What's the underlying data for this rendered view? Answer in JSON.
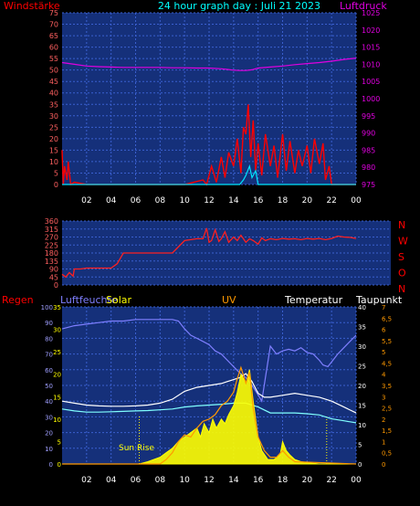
{
  "colors": {
    "bg": "#000000",
    "plot_bg": "#15307a",
    "grid": "#3a5fcf",
    "wind": "#ff0000",
    "gust": "#00e5ff",
    "pressure": "#e000e0",
    "winddir": "#ff2020",
    "humidity": "#7f7fff",
    "solar": "#ffff00",
    "uv": "#ff9900",
    "temp": "#ffffff",
    "dew": "#80ffff",
    "rain_label": "#ff0000",
    "title": "#00ffff"
  },
  "chart_data": [
    {
      "type": "line",
      "title": "24 hour graph day : Juli 21 2023",
      "ylabel_left": "Windstärke",
      "ylabel_right": "Luftdruck",
      "x_ticks": [
        "02",
        "04",
        "06",
        "08",
        "10",
        "12",
        "14",
        "16",
        "18",
        "20",
        "22",
        "00"
      ],
      "y_left_ticks": [
        "0",
        "5",
        "10",
        "15",
        "20",
        "25",
        "30",
        "35",
        "40",
        "45",
        "50",
        "55",
        "60",
        "65",
        "70",
        "75"
      ],
      "y_right_ticks": [
        "975",
        "980",
        "985",
        "990",
        "995",
        "1000",
        "1005",
        "1010",
        "1015",
        "1020",
        "1025"
      ],
      "ylim_left": [
        0,
        75
      ],
      "ylim_right": [
        975,
        1025
      ],
      "grid": true,
      "series": [
        {
          "name": "Luftdruck",
          "axis": "right",
          "x": [
            0,
            1,
            2,
            3,
            4,
            5,
            6,
            7,
            8,
            9,
            10,
            11,
            12,
            13,
            13.5,
            14,
            14.5,
            15,
            15.5,
            16,
            17,
            18,
            19,
            20,
            21,
            22,
            23,
            24
          ],
          "values": [
            1010.5,
            1010.0,
            1009.5,
            1009.3,
            1009.2,
            1009.1,
            1009.1,
            1009.1,
            1009.1,
            1009.0,
            1009.0,
            1008.9,
            1008.9,
            1008.7,
            1008.5,
            1008.3,
            1008.2,
            1008.2,
            1008.4,
            1008.9,
            1009.2,
            1009.5,
            1009.9,
            1010.2,
            1010.5,
            1010.9,
            1011.4,
            1011.8
          ]
        },
        {
          "name": "Windstärke",
          "axis": "left",
          "x": [
            0,
            0.1,
            0.2,
            0.4,
            0.5,
            0.7,
            1,
            2,
            4,
            6,
            8,
            10,
            11.5,
            11.8,
            12.2,
            12.6,
            13,
            13.3,
            13.6,
            14,
            14.3,
            14.6,
            14.8,
            15,
            15.2,
            15.4,
            15.6,
            15.8,
            16,
            16.3,
            16.6,
            17,
            17.3,
            17.6,
            18,
            18.3,
            18.6,
            19,
            19.3,
            19.6,
            20,
            20.3,
            20.6,
            21,
            21.3,
            21.5,
            21.8,
            22,
            24
          ],
          "values": [
            15,
            0,
            8,
            2,
            10,
            0,
            1,
            0,
            0,
            0,
            0,
            0,
            2,
            0,
            8,
            1,
            12,
            3,
            14,
            8,
            20,
            5,
            25,
            22,
            35,
            12,
            28,
            6,
            18,
            4,
            22,
            8,
            17,
            3,
            22,
            6,
            19,
            5,
            15,
            8,
            17,
            5,
            20,
            9,
            18,
            2,
            8,
            0,
            0
          ]
        },
        {
          "name": "Gust",
          "axis": "left",
          "x": [
            0,
            14.5,
            14.8,
            15,
            15.3,
            15.5,
            15.8,
            16,
            24
          ],
          "values": [
            0,
            0,
            2,
            4,
            8,
            3,
            6,
            0,
            0
          ]
        }
      ]
    },
    {
      "type": "line",
      "ylim": [
        0,
        360
      ],
      "y_ticks": [
        "0",
        "45",
        "90",
        "135",
        "180",
        "225",
        "270",
        "315",
        "360"
      ],
      "right_labels": [
        "N",
        "W",
        "S",
        "O",
        "N"
      ],
      "x_ticks": [
        "02",
        "04",
        "06",
        "08",
        "10",
        "12",
        "14",
        "16",
        "18",
        "20",
        "22",
        "00"
      ],
      "series": [
        {
          "name": "Windrichtung",
          "x": [
            0,
            0.3,
            0.6,
            0.9,
            1,
            1.5,
            2,
            3,
            4,
            4.5,
            5,
            6,
            7,
            8,
            9,
            10,
            10.5,
            11,
            11.5,
            11.8,
            12,
            12.2,
            12.5,
            12.8,
            13,
            13.3,
            13.6,
            14,
            14.3,
            14.6,
            15,
            15.3,
            15.6,
            16,
            16.3,
            16.6,
            17,
            17.5,
            18,
            18.5,
            19,
            19.5,
            20,
            20.5,
            21,
            21.5,
            22,
            22.5,
            23,
            23.5,
            24
          ],
          "values": [
            60,
            45,
            70,
            50,
            90,
            90,
            95,
            95,
            95,
            120,
            180,
            180,
            180,
            180,
            180,
            250,
            255,
            260,
            260,
            320,
            240,
            250,
            310,
            245,
            260,
            300,
            240,
            270,
            250,
            280,
            240,
            260,
            250,
            230,
            265,
            250,
            260,
            255,
            262,
            258,
            260,
            255,
            262,
            258,
            262,
            255,
            262,
            275,
            270,
            268,
            262
          ]
        }
      ]
    },
    {
      "type": "line",
      "labels": {
        "rain": "Regen",
        "humidity": "Luftfeuchte",
        "solar": "Solar",
        "uv": "UV",
        "temp": "Temperatur",
        "dew": "Taupunkt"
      },
      "annotation": "Sun Rise",
      "x_ticks": [
        "02",
        "04",
        "06",
        "08",
        "10",
        "12",
        "14",
        "16",
        "18",
        "20",
        "22",
        "00"
      ],
      "y_humidity_ticks": [
        "0",
        "10",
        "20",
        "30",
        "40",
        "50",
        "60",
        "70",
        "80",
        "90",
        "100"
      ],
      "y_rain_ticks": [
        "0",
        "5",
        "10",
        "15",
        "20",
        "25",
        "30",
        "35"
      ],
      "y_temp_ticks": [
        "0",
        "5",
        "10",
        "15",
        "20",
        "25",
        "30",
        "35",
        "40"
      ],
      "y_uv_ticks": [
        "0",
        "0,5",
        "1",
        "1,5",
        "2",
        "2,5",
        "3",
        "3,5",
        "4",
        "4,5",
        "5",
        "5,5",
        "6",
        "6,5",
        "7"
      ],
      "series": [
        {
          "name": "Luftfeuchte",
          "axis": "humidity",
          "x": [
            0,
            1,
            2,
            3,
            4,
            5,
            6,
            7,
            8,
            9,
            9.5,
            10,
            10.5,
            11,
            11.5,
            12,
            12.5,
            13,
            13.5,
            14,
            14.5,
            15,
            15.5,
            16,
            16.3,
            16.6,
            17,
            17.5,
            18,
            18.5,
            19,
            19.5,
            20,
            20.5,
            21,
            21.3,
            21.7,
            22,
            22.5,
            23,
            23.5,
            24
          ],
          "values": [
            86,
            88,
            89,
            90,
            91,
            91,
            92,
            92,
            92,
            92,
            91,
            86,
            82,
            80,
            78,
            76,
            72,
            70,
            66,
            62,
            58,
            55,
            50,
            44,
            40,
            55,
            75,
            70,
            72,
            73,
            72,
            74,
            71,
            70,
            66,
            63,
            62,
            65,
            70,
            74,
            78,
            82
          ]
        },
        {
          "name": "Temperatur",
          "axis": "temp",
          "x": [
            0,
            1,
            2,
            3,
            4,
            5,
            6,
            7,
            8,
            9,
            10,
            11,
            12,
            13,
            13.5,
            14,
            14.5,
            15,
            15.5,
            16,
            16.5,
            17,
            18,
            19,
            20,
            21,
            22,
            23,
            24
          ],
          "values": [
            16,
            15.5,
            15,
            14.8,
            14.7,
            14.7,
            14.8,
            15,
            15.5,
            16.5,
            18.5,
            19.5,
            20,
            20.5,
            21,
            21.5,
            22,
            23,
            21,
            18,
            17,
            17,
            17.5,
            18,
            17.5,
            17,
            16,
            14.5,
            13
          ]
        },
        {
          "name": "Taupunkt",
          "axis": "temp",
          "x": [
            0,
            1,
            2,
            3,
            4,
            5,
            6,
            7,
            8,
            9,
            10,
            11,
            12,
            13,
            14,
            15,
            16,
            17,
            18,
            19,
            20,
            21,
            22,
            23,
            24
          ],
          "values": [
            14,
            13.5,
            13.2,
            13.2,
            13.3,
            13.4,
            13.5,
            13.6,
            13.8,
            14,
            14.5,
            14.8,
            15,
            15.2,
            15.5,
            15.5,
            14.5,
            13,
            13,
            13,
            12.8,
            12.5,
            11.5,
            11,
            10.5
          ]
        },
        {
          "name": "Solar",
          "axis": "rain",
          "x": [
            0,
            6.3,
            7,
            8,
            8.5,
            9,
            9.5,
            10,
            10.5,
            11,
            11.3,
            11.6,
            12,
            12.3,
            12.6,
            13,
            13.3,
            13.6,
            14,
            14.3,
            14.6,
            15,
            15.3,
            15.6,
            16,
            16.3,
            16.8,
            17.3,
            17.8,
            18,
            18.3,
            18.6,
            19,
            19.5,
            20,
            21,
            24
          ],
          "values": [
            0,
            0,
            0.5,
            1.5,
            2.5,
            3.5,
            5,
            6,
            7,
            8,
            6,
            9,
            7,
            10,
            8,
            10,
            9,
            11,
            13,
            16,
            20,
            18,
            21,
            14,
            6,
            3,
            1,
            1,
            2,
            5,
            3,
            2,
            1,
            0.5,
            0.3,
            0,
            0
          ]
        },
        {
          "name": "UV",
          "axis": "uv",
          "x": [
            0,
            8,
            8.5,
            9,
            9.5,
            10,
            10.5,
            11,
            11.5,
            12,
            12.5,
            13,
            13.5,
            14,
            14.3,
            14.6,
            15,
            15.3,
            15.6,
            16,
            16.5,
            17,
            17.5,
            18,
            18.5,
            19,
            24
          ],
          "values": [
            0,
            0,
            0.2,
            0.5,
            1.0,
            1.3,
            1.2,
            1.6,
            1.9,
            2.0,
            2.2,
            2.6,
            2.8,
            3.2,
            3.8,
            4.3,
            3.6,
            4.1,
            2.5,
            1.2,
            0.6,
            0.3,
            0.3,
            0.6,
            0.3,
            0.1,
            0
          ]
        }
      ]
    }
  ]
}
